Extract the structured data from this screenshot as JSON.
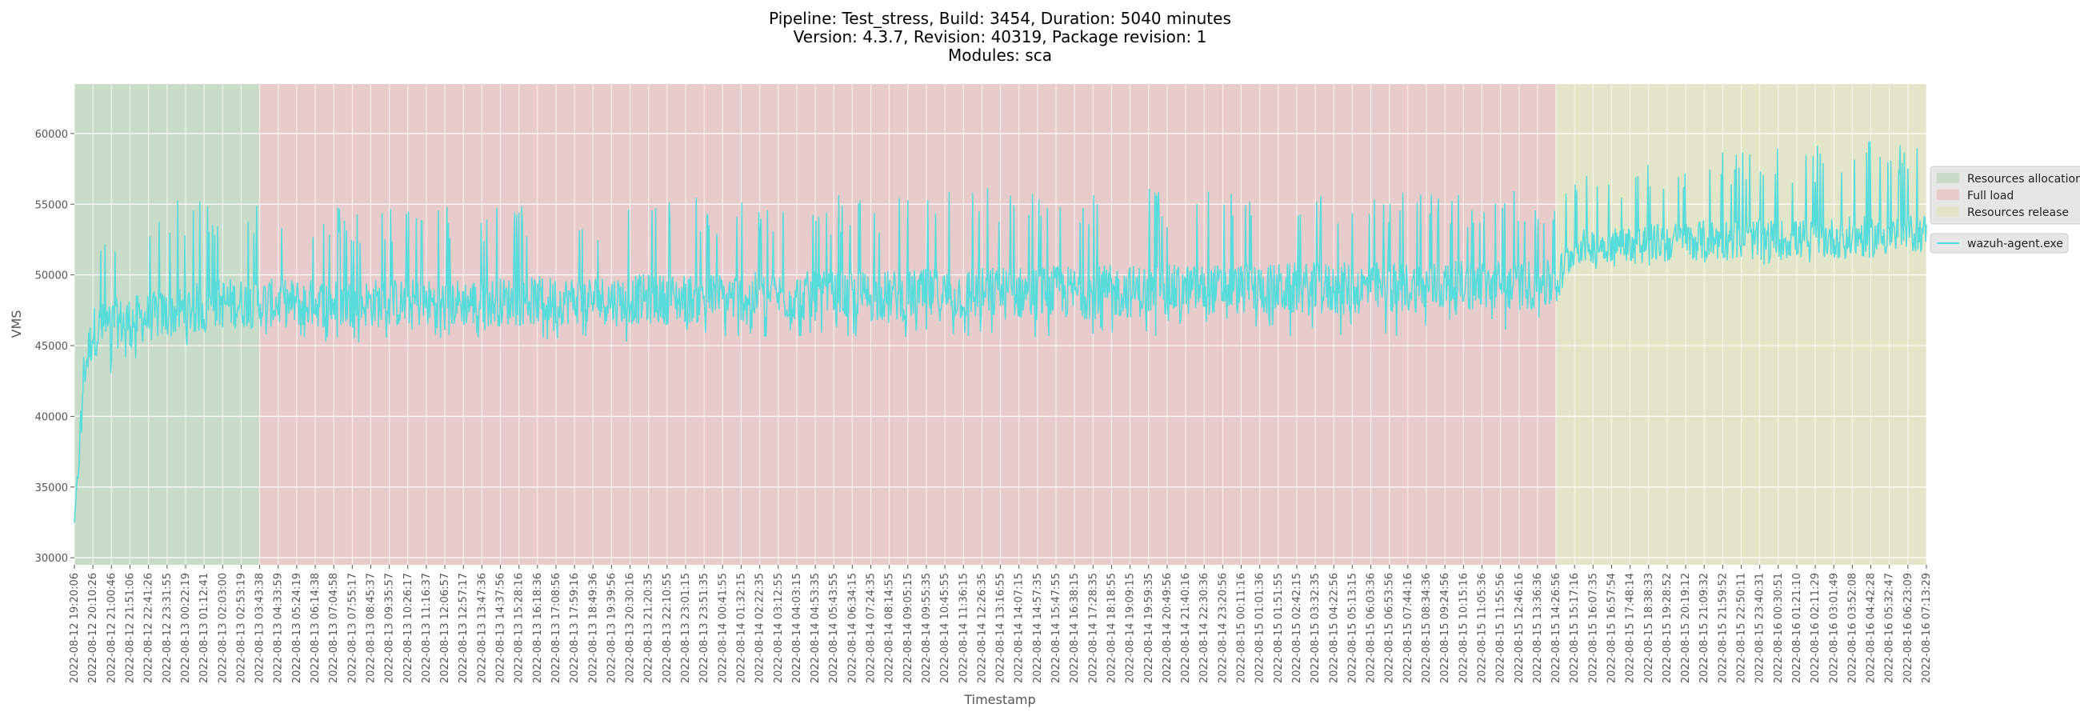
{
  "chart_data": {
    "type": "line",
    "title_lines": [
      "Pipeline: Test_stress, Build: 3454, Duration: 5040 minutes",
      "Version: 4.3.7, Revision: 40319, Package revision: 1",
      "Modules: sca"
    ],
    "xlabel": "Timestamp",
    "ylabel": "VMS",
    "ylim": [
      29500,
      63500
    ],
    "yticks": [
      30000,
      35000,
      40000,
      45000,
      50000,
      55000,
      60000
    ],
    "xlim": [
      "2022-08-12 19:20:06",
      "2022-08-16 07:13:29"
    ],
    "xticks": [
      "2022-08-12 19:20:06",
      "2022-08-12 20:10:26",
      "2022-08-12 21:00:46",
      "2022-08-12 21:51:06",
      "2022-08-12 22:41:26",
      "2022-08-12 23:31:55",
      "2022-08-13 00:22:19",
      "2022-08-13 01:12:41",
      "2022-08-13 02:03:00",
      "2022-08-13 02:53:19",
      "2022-08-13 03:43:38",
      "2022-08-13 04:33:59",
      "2022-08-13 05:24:19",
      "2022-08-13 06:14:38",
      "2022-08-13 07:04:58",
      "2022-08-13 07:55:17",
      "2022-08-13 08:45:37",
      "2022-08-13 09:35:57",
      "2022-08-13 10:26:17",
      "2022-08-13 11:16:37",
      "2022-08-13 12:06:57",
      "2022-08-13 12:57:17",
      "2022-08-13 13:47:36",
      "2022-08-13 14:37:56",
      "2022-08-13 15:28:16",
      "2022-08-13 16:18:36",
      "2022-08-13 17:08:56",
      "2022-08-13 17:59:16",
      "2022-08-13 18:49:36",
      "2022-08-13 19:39:56",
      "2022-08-13 20:30:16",
      "2022-08-13 21:20:35",
      "2022-08-13 22:10:55",
      "2022-08-13 23:01:15",
      "2022-08-13 23:51:35",
      "2022-08-14 00:41:55",
      "2022-08-14 01:32:15",
      "2022-08-14 02:22:35",
      "2022-08-14 03:12:55",
      "2022-08-14 04:03:15",
      "2022-08-14 04:53:35",
      "2022-08-14 05:43:55",
      "2022-08-14 06:34:15",
      "2022-08-14 07:24:35",
      "2022-08-14 08:14:55",
      "2022-08-14 09:05:15",
      "2022-08-14 09:55:35",
      "2022-08-14 10:45:55",
      "2022-08-14 11:36:15",
      "2022-08-14 12:26:35",
      "2022-08-14 13:16:55",
      "2022-08-14 14:07:15",
      "2022-08-14 14:57:35",
      "2022-08-14 15:47:55",
      "2022-08-14 16:38:15",
      "2022-08-14 17:28:35",
      "2022-08-14 18:18:55",
      "2022-08-14 19:09:15",
      "2022-08-14 19:59:35",
      "2022-08-14 20:49:56",
      "2022-08-14 21:40:16",
      "2022-08-14 22:30:36",
      "2022-08-14 23:20:56",
      "2022-08-15 00:11:16",
      "2022-08-15 01:01:36",
      "2022-08-15 01:51:55",
      "2022-08-15 02:42:15",
      "2022-08-15 03:32:35",
      "2022-08-15 04:22:56",
      "2022-08-15 05:13:15",
      "2022-08-15 06:03:36",
      "2022-08-15 06:53:56",
      "2022-08-15 07:44:16",
      "2022-08-15 08:34:36",
      "2022-08-15 09:24:56",
      "2022-08-15 10:15:16",
      "2022-08-15 11:05:36",
      "2022-08-15 11:55:56",
      "2022-08-15 12:46:16",
      "2022-08-15 13:36:36",
      "2022-08-15 14:26:56",
      "2022-08-15 15:17:16",
      "2022-08-15 16:07:35",
      "2022-08-15 16:57:54",
      "2022-08-15 17:48:14",
      "2022-08-15 18:38:33",
      "2022-08-15 19:28:52",
      "2022-08-15 20:19:12",
      "2022-08-15 21:09:32",
      "2022-08-15 21:59:52",
      "2022-08-15 22:50:11",
      "2022-08-15 23:40:31",
      "2022-08-16 00:30:51",
      "2022-08-16 01:21:10",
      "2022-08-16 02:11:29",
      "2022-08-16 03:01:49",
      "2022-08-16 03:52:08",
      "2022-08-16 04:42:28",
      "2022-08-16 05:32:47",
      "2022-08-16 06:23:09",
      "2022-08-16 07:13:29"
    ],
    "phases": [
      {
        "name": "Resources allocation",
        "start": "2022-08-12 19:20:06",
        "end": "2022-08-13 03:43:38",
        "color": "#c9dcc9"
      },
      {
        "name": "Full load",
        "start": "2022-08-13 03:43:38",
        "end": "2022-08-15 14:26:56",
        "color": "#e8cccc"
      },
      {
        "name": "Resources release",
        "start": "2022-08-15 14:26:56",
        "end": "2022-08-16 07:13:29",
        "color": "#e3e5c8"
      }
    ],
    "legend_phases": [
      "Resources allocation",
      "Full load",
      "Resources release"
    ],
    "legend_placement": "right",
    "grid": true,
    "series": [
      {
        "name": "wazuh-agent.exe",
        "color": "#57dcdc",
        "x": [
          "2022-08-12 19:20:06",
          "2022-08-12 19:30:00",
          "2022-08-12 19:45:00",
          "2022-08-12 20:10:26",
          "2022-08-12 21:00:46",
          "2022-08-12 22:41:26",
          "2022-08-13 00:22:19",
          "2022-08-13 02:03:00",
          "2022-08-13 03:43:38",
          "2022-08-13 07:04:58",
          "2022-08-13 12:06:57",
          "2022-08-13 17:08:56",
          "2022-08-13 22:10:55",
          "2022-08-14 03:12:55",
          "2022-08-14 08:14:55",
          "2022-08-14 13:16:55",
          "2022-08-14 18:18:55",
          "2022-08-14 23:20:56",
          "2022-08-15 04:22:56",
          "2022-08-15 09:24:56",
          "2022-08-15 14:26:56",
          "2022-08-15 15:17:16",
          "2022-08-15 18:38:33",
          "2022-08-15 21:59:52",
          "2022-08-16 01:21:10",
          "2022-08-16 04:42:28",
          "2022-08-16 07:13:29"
        ],
        "y": [
          32500,
          36000,
          43000,
          46000,
          46500,
          47000,
          47500,
          48000,
          48000,
          48000,
          48000,
          48200,
          48300,
          48500,
          48500,
          48700,
          48800,
          49000,
          49000,
          49200,
          49300,
          52000,
          52300,
          52500,
          52500,
          52700,
          53000
        ],
        "band_low": [
          32500,
          34000,
          41000,
          42000,
          43000,
          44500,
          45000,
          45500,
          45500,
          45000,
          45000,
          45000,
          45200,
          45500,
          45500,
          45500,
          45500,
          45800,
          45500,
          45800,
          45800,
          50000,
          50500,
          50500,
          50800,
          51000,
          51500
        ],
        "band_high": [
          32500,
          40000,
          50000,
          52500,
          53500,
          54500,
          55500,
          56000,
          55500,
          55000,
          55000,
          55000,
          55500,
          55500,
          56000,
          56500,
          56500,
          56000,
          56500,
          56000,
          56000,
          57000,
          58000,
          59000,
          59000,
          59500,
          59000
        ]
      }
    ]
  }
}
